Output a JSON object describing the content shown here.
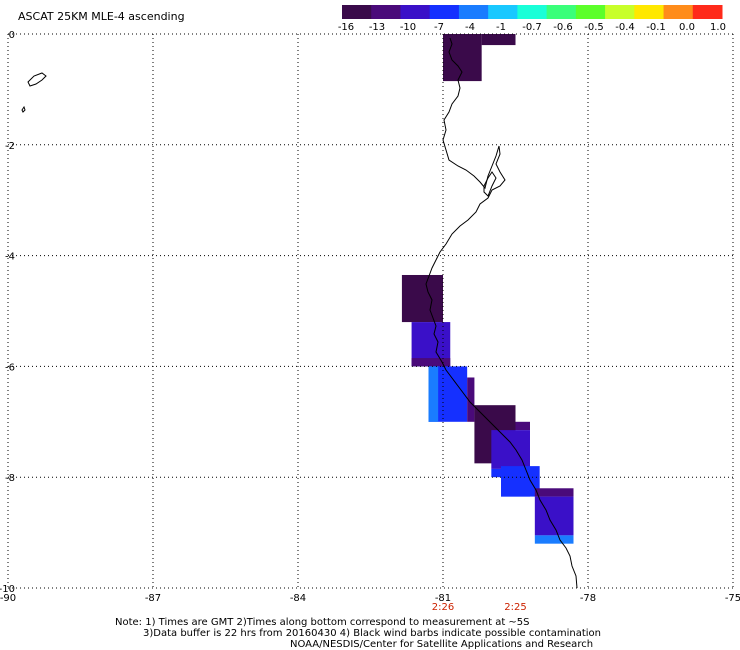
{
  "title": "ASCAT 25KM MLE-4 ascending",
  "colorbar": {
    "labels": [
      "-16",
      "-13",
      "-10",
      "-7",
      "-4",
      "-1",
      "-0.7",
      "-0.6",
      "-0.5",
      "-0.4",
      "-0.1",
      "0.0",
      "1.0"
    ],
    "colors": [
      "#3a0a4a",
      "#4a0a7a",
      "#3a10c8",
      "#1530ff",
      "#1a7cff",
      "#19c8ff",
      "#19ffd8",
      "#3aff7a",
      "#5cff2a",
      "#c8ff2a",
      "#ffe800",
      "#ff8c1a",
      "#ff2a1a"
    ]
  },
  "axes": {
    "lon_ticks": [
      "-90",
      "-87",
      "-84",
      "-81",
      "-78",
      "-75"
    ],
    "lat_ticks": [
      "0",
      "-2",
      "-4",
      "-6",
      "-8",
      "-10"
    ],
    "lon_range": [
      -90,
      -75
    ],
    "lat_range": [
      0,
      -10
    ],
    "grid": "dotted"
  },
  "swath_times": [
    {
      "label": "2:26",
      "lon": -81.0
    },
    {
      "label": "2:25",
      "lon": -79.5
    }
  ],
  "cells": [
    {
      "lon0": -80.2,
      "lon1": -79.5,
      "lat0": 0.0,
      "lat1": -0.2,
      "value": "-16"
    },
    {
      "lon0": -81.0,
      "lon1": -80.2,
      "lat0": 0.0,
      "lat1": -0.85,
      "value": "-16"
    },
    {
      "lon0": -81.85,
      "lon1": -81.0,
      "lat0": -4.35,
      "lat1": -5.2,
      "value": "-16"
    },
    {
      "lon0": -81.65,
      "lon1": -80.85,
      "lat0": -5.2,
      "lat1": -6.0,
      "value": "-10"
    },
    {
      "lon0": -81.65,
      "lon1": -80.85,
      "lat0": -5.85,
      "lat1": -6.0,
      "value": "-13"
    },
    {
      "lon0": -81.3,
      "lon1": -80.5,
      "lat0": -6.0,
      "lat1": -7.0,
      "value": "-7"
    },
    {
      "lon0": -81.3,
      "lon1": -81.1,
      "lat0": -6.0,
      "lat1": -7.0,
      "value": "-4"
    },
    {
      "lon0": -80.5,
      "lon1": -80.35,
      "lat0": -6.2,
      "lat1": -7.0,
      "value": "-13"
    },
    {
      "lon0": -80.35,
      "lon1": -79.5,
      "lat0": -6.7,
      "lat1": -7.75,
      "value": "-16"
    },
    {
      "lon0": -79.5,
      "lon1": -79.2,
      "lat0": -7.0,
      "lat1": -7.15,
      "value": "-13"
    },
    {
      "lon0": -80.0,
      "lon1": -79.2,
      "lat0": -7.15,
      "lat1": -7.85,
      "value": "-10"
    },
    {
      "lon0": -80.0,
      "lon1": -79.2,
      "lat0": -7.85,
      "lat1": -8.0,
      "value": "-7"
    },
    {
      "lon0": -79.8,
      "lon1": -79.0,
      "lat0": -7.8,
      "lat1": -8.35,
      "value": "-7"
    },
    {
      "lon0": -79.8,
      "lon1": -79.2,
      "lat0": -8.0,
      "lat1": -8.35,
      "value": "-7"
    },
    {
      "lon0": -79.1,
      "lon1": -78.3,
      "lat0": -8.2,
      "lat1": -8.35,
      "value": "-13"
    },
    {
      "lon0": -79.1,
      "lon1": -78.3,
      "lat0": -8.35,
      "lat1": -9.05,
      "value": "-10"
    },
    {
      "lon0": -79.1,
      "lon1": -78.3,
      "lat0": -9.05,
      "lat1": -9.2,
      "value": "-4"
    }
  ],
  "notes": [
    "Note: 1) Times are GMT 2)Times along bottom correspond to measurement at ~5S",
    "3)Data buffer is 22 hrs from 20160430 4) Black wind barbs indicate possible contamination",
    "NOAA/NESDIS/Center for Satellite Applications and Research"
  ]
}
